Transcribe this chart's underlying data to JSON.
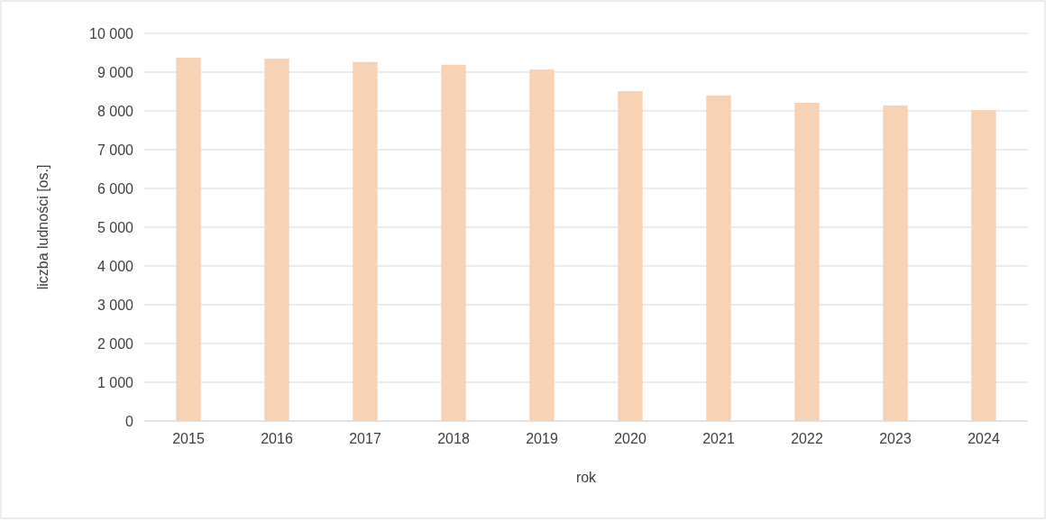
{
  "chart_data": {
    "type": "bar",
    "xlabel": "rok",
    "ylabel": "liczba ludności [os.]",
    "categories": [
      "2015",
      "2016",
      "2017",
      "2018",
      "2019",
      "2020",
      "2021",
      "2022",
      "2023",
      "2024"
    ],
    "values": [
      9370,
      9350,
      9260,
      9190,
      9070,
      8510,
      8400,
      8210,
      8140,
      8020
    ],
    "color": "#f8d2b4",
    "ylim": [
      0,
      10000
    ],
    "yticks": [
      0,
      {
        "value": 1000,
        "label": "1 000"
      },
      {
        "value": 2000,
        "label": "2 000"
      },
      {
        "value": 3000,
        "label": "3 000"
      },
      {
        "value": 4000,
        "label": "4 000"
      },
      {
        "value": 5000,
        "label": "5 000"
      },
      {
        "value": 6000,
        "label": "6 000"
      },
      {
        "value": 7000,
        "label": "7 000"
      },
      {
        "value": 8000,
        "label": "8 000"
      },
      {
        "value": 9000,
        "label": "9 000"
      },
      {
        "value": 10000,
        "label": "10 000"
      }
    ],
    "grid": "y"
  }
}
